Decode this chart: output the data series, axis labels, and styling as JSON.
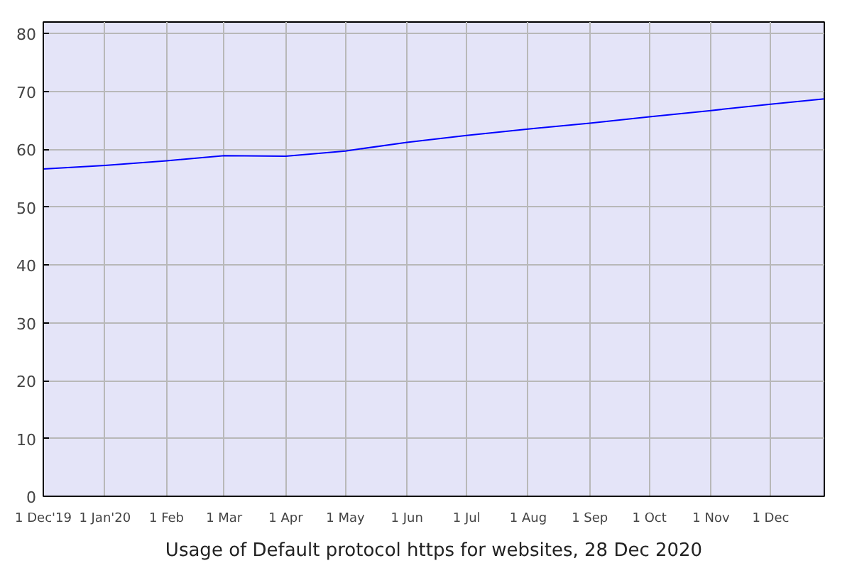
{
  "chart_data": {
    "type": "line",
    "title": "Usage of Default protocol https for websites, 28 Dec 2020",
    "x": [
      "2019-12-01",
      "2020-01-01",
      "2020-02-01",
      "2020-03-01",
      "2020-04-01",
      "2020-05-01",
      "2020-06-01",
      "2020-07-01",
      "2020-08-01",
      "2020-09-01",
      "2020-10-01",
      "2020-11-01",
      "2020-12-01",
      "2020-12-28"
    ],
    "series": [
      {
        "color": "#0000ff",
        "values": [
          56.6,
          57.2,
          58.0,
          58.9,
          58.8,
          59.7,
          61.2,
          62.4,
          63.5,
          64.5,
          65.6,
          66.7,
          67.8,
          68.7
        ]
      }
    ],
    "xlim": [
      "2019-12-01",
      "2020-12-28"
    ],
    "xticks": [
      {
        "value": "2019-12-01",
        "label": "1 Dec'19"
      },
      {
        "value": "2020-01-01",
        "label": "1 Jan'20"
      },
      {
        "value": "2020-02-01",
        "label": "1 Feb"
      },
      {
        "value": "2020-03-01",
        "label": "1 Mar"
      },
      {
        "value": "2020-04-01",
        "label": "1 Apr"
      },
      {
        "value": "2020-05-01",
        "label": "1 May"
      },
      {
        "value": "2020-06-01",
        "label": "1 Jun"
      },
      {
        "value": "2020-07-01",
        "label": "1 Jul"
      },
      {
        "value": "2020-08-01",
        "label": "1 Aug"
      },
      {
        "value": "2020-09-01",
        "label": "1 Sep"
      },
      {
        "value": "2020-10-01",
        "label": "1 Oct"
      },
      {
        "value": "2020-11-01",
        "label": "1 Nov"
      },
      {
        "value": "2020-12-01",
        "label": "1 Dec"
      }
    ],
    "ylim": [
      0,
      82
    ],
    "yticks": [
      0,
      10,
      20,
      30,
      40,
      50,
      60,
      70,
      80
    ],
    "grid": true,
    "marker": "none",
    "line_style": "solid"
  }
}
